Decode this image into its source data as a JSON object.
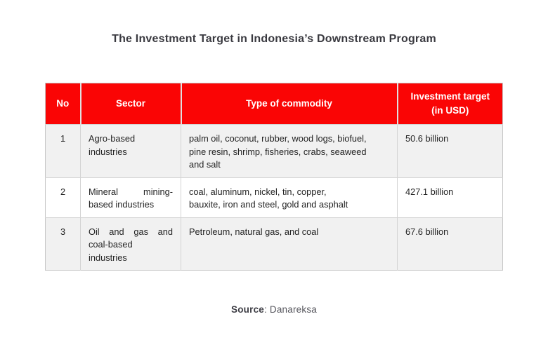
{
  "page": {
    "title": "The Investment Target in Indonesia’s Downstream Program"
  },
  "table": {
    "headers": [
      "No",
      "Sector",
      "Type of commodity",
      "Investment target (in USD)"
    ],
    "rows": [
      {
        "no": "1",
        "sector": "Agro-based industries",
        "commodity": "palm oil, coconut, rubber, wood logs, biofuel,\npine resin, shrimp, fisheries, crabs, seaweed\nand salt",
        "investment": "50.6 billion"
      },
      {
        "no": "2",
        "sector": "Mineral mining-based industries",
        "commodity": "coal, aluminum, nickel, tin, copper,\nbauxite, iron and steel, gold and asphalt",
        "investment": "427.1 billion"
      },
      {
        "no": "3",
        "sector": "Oil and gas and coal-based industries",
        "commodity": "Petroleum, natural gas, and coal",
        "investment": "67.6 billion"
      }
    ]
  },
  "source": {
    "label": "Source",
    "rest": ": Danareksa"
  },
  "colors": {
    "header_red": "#fa0505",
    "header_text": "#ffffff",
    "row_alt_gray": "#f1f1f1",
    "body_text": "#232323",
    "title_text": "#3a3a40",
    "border_gray": "#c6c6c6"
  },
  "chart_data": {
    "type": "table",
    "title": "The Investment Target in Indonesia’s Downstream Program",
    "columns": [
      "No",
      "Sector",
      "Type of commodity",
      "Investment target (in USD)"
    ],
    "rows": [
      [
        "1",
        "Agro-based industries",
        "palm oil, coconut, rubber, wood logs, biofuel, pine resin, shrimp, fisheries, crabs, seaweed and salt",
        "50.6 billion"
      ],
      [
        "2",
        "Mineral mining-based industries",
        "coal, aluminum, nickel, tin, copper, bauxite, iron and steel, gold and asphalt",
        "427.1 billion"
      ],
      [
        "3",
        "Oil and gas and coal-based industries",
        "Petroleum, natural gas, and coal",
        "67.6 billion"
      ]
    ],
    "investment_target_usd_billion": [
      50.6,
      427.1,
      67.6
    ],
    "source": "Danareksa"
  }
}
